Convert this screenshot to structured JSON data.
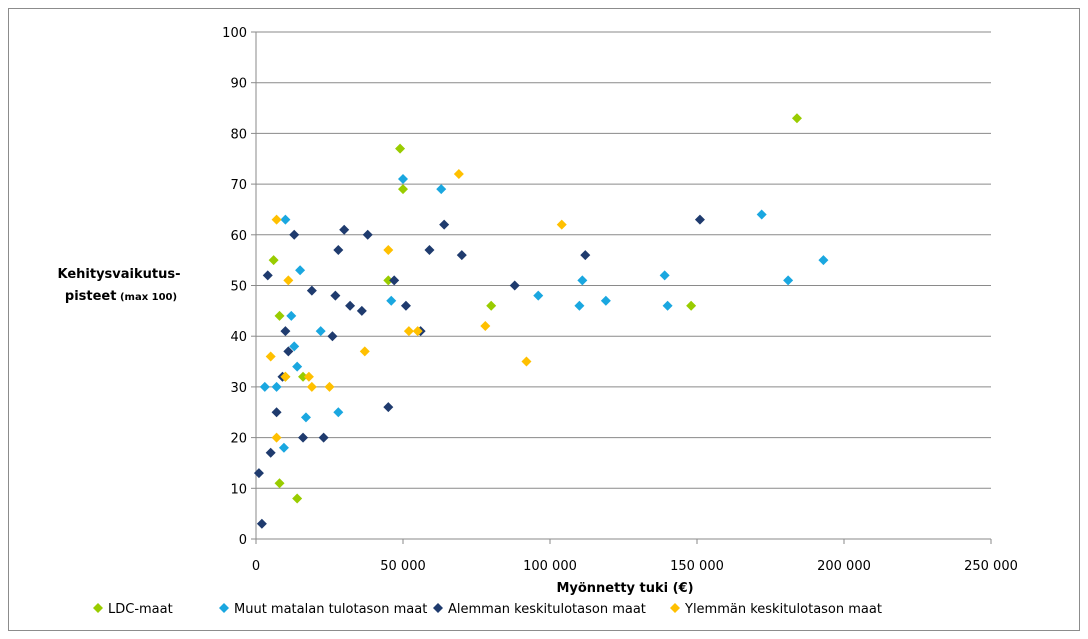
{
  "chart_data": {
    "type": "scatter",
    "xlabel": "Myönnetty tuki (€)",
    "ylabel_line1": "Kehitysvaikutus-",
    "ylabel_line2_main": "pisteet",
    "ylabel_line2_small": " (max 100)",
    "xlim": [
      0,
      250000
    ],
    "ylim": [
      0,
      100
    ],
    "x_ticks": [
      0,
      50000,
      100000,
      150000,
      200000,
      250000
    ],
    "x_tick_labels": [
      "0",
      "50 000",
      "100 000",
      "150 000",
      "200 000",
      "250 000"
    ],
    "y_ticks": [
      0,
      10,
      20,
      30,
      40,
      50,
      60,
      70,
      80,
      90,
      100
    ],
    "y_tick_labels": [
      "0",
      "10",
      "20",
      "30",
      "40",
      "50",
      "60",
      "70",
      "80",
      "90",
      "100"
    ],
    "grid": "horizontal",
    "legend_position": "bottom",
    "series": [
      {
        "name": "LDC-maat",
        "color": "#99cc00",
        "points": [
          [
            6000,
            55
          ],
          [
            8000,
            44
          ],
          [
            8000,
            11
          ],
          [
            10000,
            32
          ],
          [
            14000,
            8
          ],
          [
            16000,
            32
          ],
          [
            45000,
            51
          ],
          [
            49000,
            77
          ],
          [
            50000,
            69
          ],
          [
            80000,
            46
          ],
          [
            148000,
            46
          ],
          [
            184000,
            83
          ]
        ]
      },
      {
        "name": "Muut matalan tulotason maat",
        "color": "#1aa7e0",
        "points": [
          [
            3000,
            30
          ],
          [
            7000,
            30
          ],
          [
            9500,
            18
          ],
          [
            10000,
            63
          ],
          [
            12000,
            44
          ],
          [
            13000,
            38
          ],
          [
            14000,
            34
          ],
          [
            15000,
            53
          ],
          [
            17000,
            24
          ],
          [
            22000,
            41
          ],
          [
            28000,
            25
          ],
          [
            46000,
            47
          ],
          [
            50000,
            71
          ],
          [
            63000,
            69
          ],
          [
            96000,
            48
          ],
          [
            110000,
            46
          ],
          [
            111000,
            51
          ],
          [
            119000,
            47
          ],
          [
            139000,
            52
          ],
          [
            140000,
            46
          ],
          [
            172000,
            64
          ],
          [
            181000,
            51
          ],
          [
            193000,
            55
          ]
        ]
      },
      {
        "name": "Alemman keskitulotason maat",
        "color": "#1f3b6e",
        "points": [
          [
            1000,
            13
          ],
          [
            2000,
            3
          ],
          [
            4000,
            52
          ],
          [
            5000,
            17
          ],
          [
            7000,
            25
          ],
          [
            9000,
            32
          ],
          [
            10000,
            41
          ],
          [
            11000,
            37
          ],
          [
            13000,
            60
          ],
          [
            16000,
            20
          ],
          [
            19000,
            49
          ],
          [
            23000,
            20
          ],
          [
            26000,
            40
          ],
          [
            27000,
            48
          ],
          [
            28000,
            57
          ],
          [
            30000,
            61
          ],
          [
            32000,
            46
          ],
          [
            36000,
            45
          ],
          [
            38000,
            60
          ],
          [
            45000,
            26
          ],
          [
            47000,
            51
          ],
          [
            51000,
            46
          ],
          [
            56000,
            41
          ],
          [
            59000,
            57
          ],
          [
            64000,
            62
          ],
          [
            70000,
            56
          ],
          [
            88000,
            50
          ],
          [
            112000,
            56
          ],
          [
            151000,
            63
          ]
        ]
      },
      {
        "name": "Ylemmän keskitulotason maat",
        "color": "#ffc000",
        "points": [
          [
            5000,
            36
          ],
          [
            7000,
            63
          ],
          [
            7000,
            20
          ],
          [
            10000,
            32
          ],
          [
            11000,
            51
          ],
          [
            18000,
            32
          ],
          [
            19000,
            30
          ],
          [
            25000,
            30
          ],
          [
            37000,
            37
          ],
          [
            45000,
            57
          ],
          [
            52000,
            41
          ],
          [
            55000,
            41
          ],
          [
            69000,
            72
          ],
          [
            78000,
            42
          ],
          [
            92000,
            35
          ],
          [
            104000,
            62
          ]
        ]
      }
    ]
  }
}
